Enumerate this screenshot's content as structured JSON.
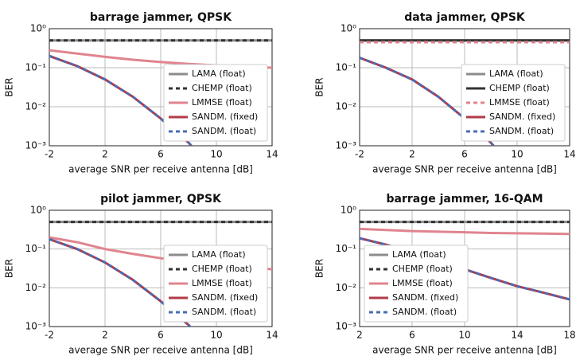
{
  "chart_data": [
    {
      "type": "line",
      "title": "barrage jammer, QPSK",
      "xlabel": "average SNR per receive antenna [dB]",
      "ylabel": "BER",
      "x": [
        -2,
        0,
        2,
        4,
        6,
        8,
        10,
        12,
        14
      ],
      "xlim": [
        -2,
        14
      ],
      "xticks": [
        -2,
        2,
        6,
        10,
        14
      ],
      "ylim": [
        0.001,
        1
      ],
      "log_y": true,
      "grid": true,
      "legend": "lower right",
      "yticks": [
        {
          "value": 1,
          "label": "10⁰"
        },
        {
          "value": 0.1,
          "label": "10⁻¹"
        },
        {
          "value": 0.01,
          "label": "10⁻²"
        },
        {
          "value": 0.001,
          "label": "10⁻³"
        }
      ],
      "series": [
        {
          "name": "LAMA (float)",
          "color": "#8c8c8c",
          "dashed": false,
          "values": [
            0.5,
            0.5,
            0.5,
            0.5,
            0.5,
            0.5,
            0.5,
            0.5,
            0.5
          ]
        },
        {
          "name": "CHEMP (float)",
          "color": "#333333",
          "dashed": true,
          "values": [
            0.5,
            0.5,
            0.5,
            0.5,
            0.5,
            0.5,
            0.5,
            0.5,
            0.5
          ]
        },
        {
          "name": "LMMSE (float)",
          "color": "#e0848f",
          "dashed": false,
          "values": [
            0.28,
            0.23,
            0.19,
            0.16,
            0.14,
            0.125,
            0.115,
            0.105,
            0.1
          ]
        },
        {
          "name": "SANDM. (fixed)",
          "color": "#b23a48",
          "dashed": false,
          "values": [
            0.2,
            0.11,
            0.05,
            0.018,
            0.005,
            0.0012,
            0.0002,
            null,
            null
          ]
        },
        {
          "name": "SANDM. (float)",
          "color": "#4a6cb5",
          "dashed": true,
          "values": [
            0.2,
            0.11,
            0.05,
            0.018,
            0.005,
            0.0012,
            0.0002,
            null,
            null
          ]
        }
      ]
    },
    {
      "type": "line",
      "title": "data jammer, QPSK",
      "xlabel": "average SNR per receive antenna [dB]",
      "ylabel": "BER",
      "x": [
        -2,
        0,
        2,
        4,
        6,
        8,
        10,
        12,
        14
      ],
      "xlim": [
        -2,
        14
      ],
      "xticks": [
        -2,
        2,
        6,
        10,
        14
      ],
      "ylim": [
        0.001,
        1
      ],
      "log_y": true,
      "grid": true,
      "legend": "lower right",
      "yticks": [
        {
          "value": 1,
          "label": "10⁰"
        },
        {
          "value": 0.1,
          "label": "10⁻¹"
        },
        {
          "value": 0.01,
          "label": "10⁻²"
        },
        {
          "value": 0.001,
          "label": "10⁻³"
        }
      ],
      "series": [
        {
          "name": "LAMA (float)",
          "color": "#8c8c8c",
          "dashed": false,
          "values": [
            0.5,
            0.5,
            0.5,
            0.5,
            0.5,
            0.5,
            0.5,
            0.5,
            0.5
          ]
        },
        {
          "name": "CHEMP (float)",
          "color": "#333333",
          "dashed": false,
          "values": [
            0.5,
            0.5,
            0.5,
            0.5,
            0.5,
            0.5,
            0.5,
            0.5,
            0.5
          ]
        },
        {
          "name": "LMMSE (float)",
          "color": "#e0848f",
          "dashed": true,
          "values": [
            0.45,
            0.45,
            0.45,
            0.45,
            0.45,
            0.45,
            0.45,
            0.45,
            0.45
          ]
        },
        {
          "name": "SANDM. (fixed)",
          "color": "#b23a48",
          "dashed": false,
          "values": [
            0.18,
            0.1,
            0.05,
            0.018,
            0.005,
            0.0012,
            0.0002,
            null,
            null
          ]
        },
        {
          "name": "SANDM. (float)",
          "color": "#4a6cb5",
          "dashed": true,
          "values": [
            0.18,
            0.1,
            0.05,
            0.018,
            0.005,
            0.0012,
            0.0002,
            null,
            null
          ]
        }
      ]
    },
    {
      "type": "line",
      "title": "pilot jammer, QPSK",
      "xlabel": "average SNR per receive antenna [dB]",
      "ylabel": "BER",
      "x": [
        -2,
        0,
        2,
        4,
        6,
        8,
        10,
        12,
        14
      ],
      "xlim": [
        -2,
        14
      ],
      "xticks": [
        -2,
        2,
        6,
        10,
        14
      ],
      "ylim": [
        0.001,
        1
      ],
      "log_y": true,
      "grid": true,
      "legend": "lower right",
      "yticks": [
        {
          "value": 1,
          "label": "10⁰"
        },
        {
          "value": 0.1,
          "label": "10⁻¹"
        },
        {
          "value": 0.01,
          "label": "10⁻²"
        },
        {
          "value": 0.001,
          "label": "10⁻³"
        }
      ],
      "series": [
        {
          "name": "LAMA (float)",
          "color": "#8c8c8c",
          "dashed": false,
          "values": [
            0.5,
            0.5,
            0.5,
            0.5,
            0.5,
            0.5,
            0.5,
            0.5,
            0.5
          ]
        },
        {
          "name": "CHEMP (float)",
          "color": "#333333",
          "dashed": true,
          "values": [
            0.5,
            0.5,
            0.5,
            0.5,
            0.5,
            0.5,
            0.5,
            0.5,
            0.5
          ]
        },
        {
          "name": "LMMSE (float)",
          "color": "#e0848f",
          "dashed": false,
          "values": [
            0.2,
            0.15,
            0.1,
            0.075,
            0.058,
            0.047,
            0.04,
            0.035,
            0.03
          ]
        },
        {
          "name": "SANDM. (fixed)",
          "color": "#b23a48",
          "dashed": false,
          "values": [
            0.18,
            0.1,
            0.045,
            0.016,
            0.0045,
            0.0011,
            0.0002,
            null,
            null
          ]
        },
        {
          "name": "SANDM. (float)",
          "color": "#4a6cb5",
          "dashed": true,
          "values": [
            0.18,
            0.1,
            0.045,
            0.016,
            0.0045,
            0.0011,
            0.0002,
            null,
            null
          ]
        }
      ]
    },
    {
      "type": "line",
      "title": "barrage jammer, 16-QAM",
      "xlabel": "average SNR per receive antenna [dB]",
      "ylabel": "BER",
      "x": [
        2,
        4,
        6,
        8,
        10,
        12,
        14,
        16,
        18
      ],
      "xlim": [
        2,
        18
      ],
      "xticks": [
        2,
        6,
        10,
        14,
        18
      ],
      "ylim": [
        0.001,
        1
      ],
      "log_y": true,
      "grid": true,
      "legend": "lower left",
      "yticks": [
        {
          "value": 1,
          "label": "10⁰"
        },
        {
          "value": 0.1,
          "label": "10⁻¹"
        },
        {
          "value": 0.01,
          "label": "10⁻²"
        },
        {
          "value": 0.001,
          "label": "10⁻³"
        }
      ],
      "series": [
        {
          "name": "LAMA (float)",
          "color": "#8c8c8c",
          "dashed": false,
          "values": [
            0.5,
            0.5,
            0.5,
            0.5,
            0.5,
            0.5,
            0.5,
            0.5,
            0.5
          ]
        },
        {
          "name": "CHEMP (float)",
          "color": "#333333",
          "dashed": true,
          "values": [
            0.5,
            0.5,
            0.5,
            0.5,
            0.5,
            0.5,
            0.5,
            0.5,
            0.5
          ]
        },
        {
          "name": "LMMSE (float)",
          "color": "#e0848f",
          "dashed": false,
          "values": [
            0.33,
            0.31,
            0.29,
            0.28,
            0.27,
            0.26,
            0.255,
            0.25,
            0.245
          ]
        },
        {
          "name": "SANDM. (fixed)",
          "color": "#b23a48",
          "dashed": false,
          "values": [
            0.19,
            0.13,
            0.085,
            0.05,
            0.03,
            0.018,
            0.011,
            0.0075,
            0.005
          ]
        },
        {
          "name": "SANDM. (float)",
          "color": "#4a6cb5",
          "dashed": true,
          "values": [
            0.19,
            0.13,
            0.085,
            0.05,
            0.03,
            0.018,
            0.011,
            0.0075,
            0.005
          ]
        }
      ]
    }
  ]
}
